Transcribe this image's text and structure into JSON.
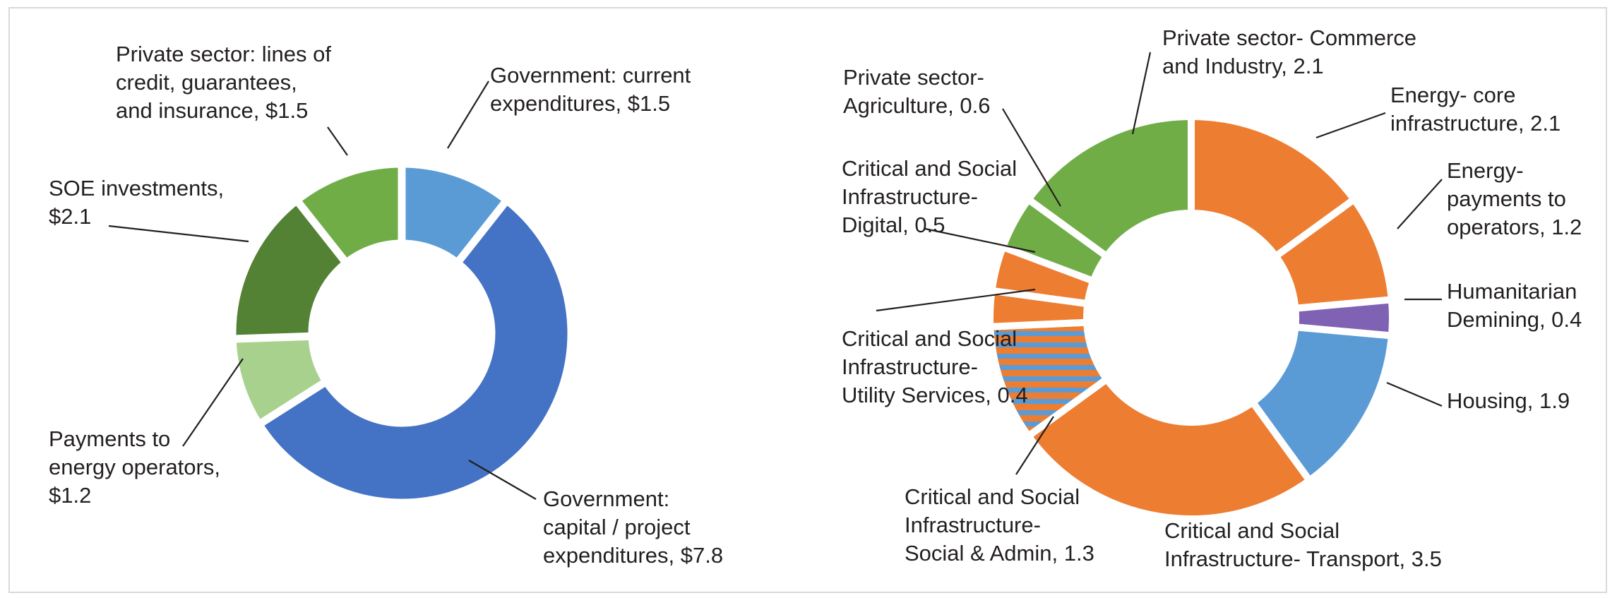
{
  "chart_data": [
    {
      "type": "pie",
      "donut": true,
      "slices": [
        {
          "label_lines": [
            "Government: current",
            "expenditures, $1.5"
          ],
          "value": 1.5,
          "color": "#5b9bd5"
        },
        {
          "label_lines": [
            "Government:",
            "capital / project",
            "expenditures, $7.8"
          ],
          "value": 7.8,
          "color": "#4472c4"
        },
        {
          "label_lines": [
            "Payments to",
            "energy operators,",
            "$1.2"
          ],
          "value": 1.2,
          "color": "#a9d18e"
        },
        {
          "label_lines": [
            "SOE investments,",
            "$2.1"
          ],
          "value": 2.1,
          "color": "#548235"
        },
        {
          "label_lines": [
            "Private sector: lines of",
            "credit, guarantees,",
            "and insurance, $1.5"
          ],
          "value": 1.5,
          "color": "#70ad47"
        }
      ]
    },
    {
      "type": "pie",
      "donut": true,
      "slices": [
        {
          "label_lines": [
            "Energy- core",
            "infrastructure, 2.1"
          ],
          "value": 2.1,
          "color": "#ed7d31"
        },
        {
          "label_lines": [
            "Energy-",
            "payments to",
            "operators, 1.2"
          ],
          "value": 1.2,
          "color": "#ed7d31"
        },
        {
          "label_lines": [
            "Humanitarian",
            "Demining, 0.4"
          ],
          "value": 0.4,
          "color": "#7f62b4"
        },
        {
          "label_lines": [
            "Housing, 1.9"
          ],
          "value": 1.9,
          "color": "#5b9bd5"
        },
        {
          "label_lines": [
            "Critical and Social",
            "Infrastructure- Transport, 3.5"
          ],
          "value": 3.5,
          "color": "#ed7d31"
        },
        {
          "label_lines": [
            "Critical and Social",
            "Infrastructure-",
            "Social & Admin, 1.3"
          ],
          "value": 1.3,
          "color": "#ed7d31",
          "pattern": "striped-blue"
        },
        {
          "label_lines": [
            "Critical and Social",
            "Infrastructure-",
            "Utility Services, 0.4"
          ],
          "value": 0.4,
          "color": "#ed7d31"
        },
        {
          "label_lines": [
            "Critical and Social",
            "Infrastructure-",
            "Digital, 0.5"
          ],
          "value": 0.5,
          "color": "#ed7d31"
        },
        {
          "label_lines": [
            "Private sector-",
            "Agriculture, 0.6"
          ],
          "value": 0.6,
          "color": "#70ad47"
        },
        {
          "label_lines": [
            "Private sector- Commerce",
            "and Industry, 2.1"
          ],
          "value": 2.1,
          "color": "#70ad47"
        }
      ]
    }
  ]
}
